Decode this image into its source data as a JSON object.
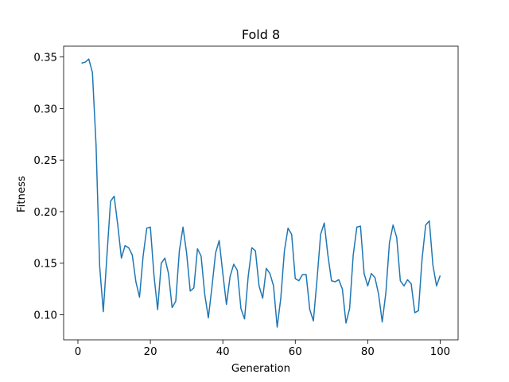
{
  "chart_data": {
    "type": "line",
    "title": "Fold 8",
    "xlabel": "Generation",
    "ylabel": "Fitness",
    "xlim": [
      -3.95,
      104.95
    ],
    "ylim": [
      0.0757,
      0.3605
    ],
    "xticks": [
      0,
      20,
      40,
      60,
      80,
      100
    ],
    "yticks": [
      0.1,
      0.15,
      0.2,
      0.25,
      0.3,
      0.35
    ],
    "ytick_labels": [
      "0.10",
      "0.15",
      "0.20",
      "0.25",
      "0.30",
      "0.35"
    ],
    "grid": false,
    "color": "#1f77b4",
    "series": [
      {
        "x": [
          1,
          2,
          3,
          4,
          5,
          6,
          7,
          8,
          9,
          10,
          11,
          12,
          13,
          14,
          15,
          16,
          17,
          18,
          19,
          20,
          21,
          22,
          23,
          24,
          25,
          26,
          27,
          28,
          29,
          30,
          31,
          32,
          33,
          34,
          35,
          36,
          37,
          38,
          39,
          40,
          41,
          42,
          43,
          44,
          45,
          46,
          47,
          48,
          49,
          50,
          51,
          52,
          53,
          54,
          55,
          56,
          57,
          58,
          59,
          60,
          61,
          62,
          63,
          64,
          65,
          66,
          67,
          68,
          69,
          70,
          71,
          72,
          73,
          74,
          75,
          76,
          77,
          78,
          79,
          80,
          81,
          82,
          83,
          84,
          85,
          86,
          87,
          88,
          89,
          90,
          91,
          92,
          93,
          94,
          95,
          96,
          97,
          98,
          99,
          100
        ],
        "values": [
          0.344,
          0.345,
          0.348,
          0.335,
          0.265,
          0.147,
          0.103,
          0.157,
          0.21,
          0.215,
          0.187,
          0.155,
          0.167,
          0.165,
          0.158,
          0.132,
          0.117,
          0.157,
          0.184,
          0.185,
          0.138,
          0.105,
          0.15,
          0.155,
          0.14,
          0.107,
          0.113,
          0.162,
          0.185,
          0.16,
          0.123,
          0.126,
          0.164,
          0.157,
          0.12,
          0.097,
          0.127,
          0.16,
          0.172,
          0.14,
          0.11,
          0.137,
          0.149,
          0.143,
          0.106,
          0.096,
          0.137,
          0.165,
          0.162,
          0.128,
          0.116,
          0.145,
          0.14,
          0.128,
          0.088,
          0.116,
          0.162,
          0.184,
          0.178,
          0.135,
          0.133,
          0.139,
          0.139,
          0.105,
          0.094,
          0.134,
          0.178,
          0.189,
          0.158,
          0.133,
          0.132,
          0.134,
          0.125,
          0.092,
          0.106,
          0.158,
          0.185,
          0.186,
          0.14,
          0.128,
          0.14,
          0.136,
          0.12,
          0.093,
          0.121,
          0.17,
          0.187,
          0.175,
          0.133,
          0.128,
          0.134,
          0.13,
          0.102,
          0.104,
          0.154,
          0.187,
          0.191,
          0.148,
          0.128,
          0.138
        ]
      }
    ]
  }
}
